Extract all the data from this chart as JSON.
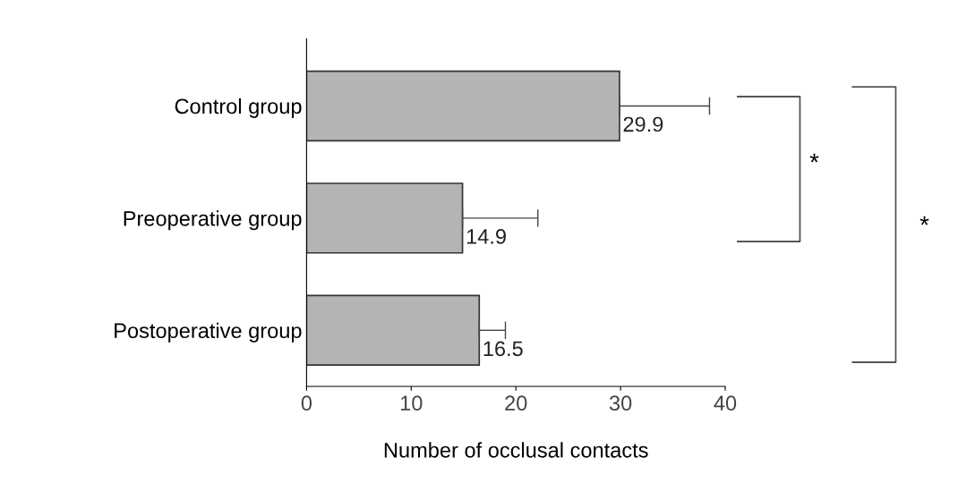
{
  "chart_data": {
    "type": "bar",
    "orientation": "horizontal",
    "categories": [
      "Control group",
      "Preoperative group",
      "Postoperative group"
    ],
    "values": [
      29.9,
      14.9,
      16.5
    ],
    "color": "#b4b4b4",
    "errors": [
      [
        29.9,
        38.5
      ],
      [
        14.9,
        22.1
      ],
      [
        16.5,
        19.0
      ]
    ],
    "data_labels": true,
    "xlim": [
      0,
      40
    ],
    "xticks": [
      0,
      10,
      20,
      30,
      40
    ],
    "xlabel": "Number of occlusal contacts",
    "annotations": [
      "*",
      "*"
    ],
    "grid": false,
    "legend": false
  }
}
